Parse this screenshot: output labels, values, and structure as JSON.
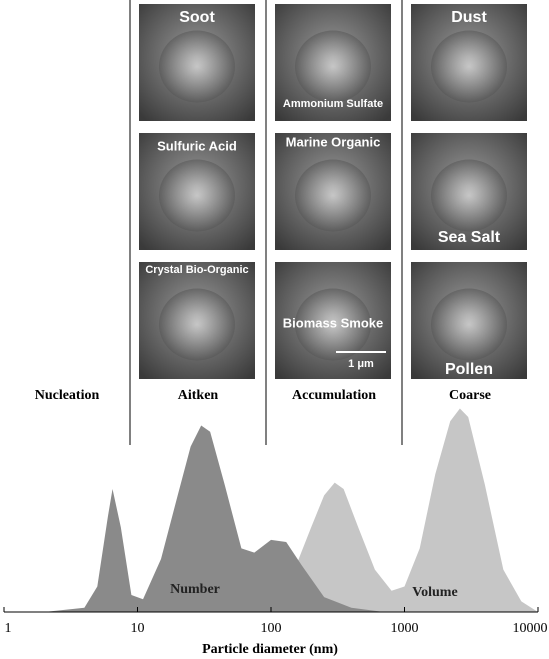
{
  "chart_data": {
    "type": "area",
    "xlabel": "Particle diameter (nm)",
    "xscale": "log",
    "xlim": [
      1,
      10000
    ],
    "xticks": [
      1,
      10,
      100,
      1000,
      10000
    ],
    "ylim": [
      0,
      1
    ],
    "modes": [
      "Nucleation",
      "Aitken",
      "Accumulation",
      "Coarse"
    ],
    "panels": [
      {
        "label": "Soot"
      },
      {
        "label": "Ammonium Sulfate"
      },
      {
        "label": "Dust"
      },
      {
        "label": "Sulfuric Acid"
      },
      {
        "label": "Marine Organic"
      },
      {
        "label": "Sea Salt"
      },
      {
        "label": "Crystal Bio-Organic"
      },
      {
        "label": "Biomass Smoke"
      },
      {
        "label": "Pollen"
      }
    ],
    "scale_label": "1 μm",
    "series": [
      {
        "name": "Volume",
        "color": "#c6c6c6",
        "x": [
          20,
          50,
          100,
          150,
          200,
          250,
          300,
          350,
          450,
          600,
          800,
          1000,
          1300,
          1700,
          2200,
          2600,
          3000,
          4000,
          5500,
          7500,
          10000
        ],
        "values": [
          0,
          0.02,
          0.08,
          0.2,
          0.4,
          0.55,
          0.61,
          0.58,
          0.4,
          0.2,
          0.1,
          0.12,
          0.3,
          0.65,
          0.9,
          0.96,
          0.92,
          0.6,
          0.2,
          0.05,
          0
        ]
      },
      {
        "name": "Number",
        "color": "#8a8a8a",
        "x": [
          2,
          4,
          5,
          6,
          6.5,
          7.5,
          9,
          11,
          15,
          20,
          25,
          30,
          35,
          45,
          60,
          75,
          100,
          130,
          170,
          250,
          400,
          700
        ],
        "values": [
          0,
          0.02,
          0.12,
          0.45,
          0.58,
          0.4,
          0.08,
          0.06,
          0.25,
          0.55,
          0.78,
          0.88,
          0.85,
          0.6,
          0.3,
          0.28,
          0.34,
          0.33,
          0.22,
          0.07,
          0.02,
          0
        ]
      }
    ]
  }
}
